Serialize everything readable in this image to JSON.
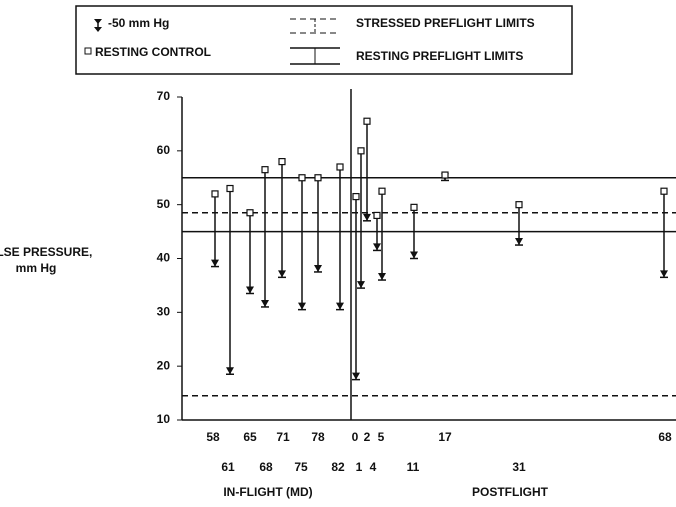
{
  "chart_data": {
    "type": "range",
    "y_label": [
      "PULSE PRESSURE,",
      "mm Hg"
    ],
    "x_groups": [
      "IN-FLIGHT (MD)",
      "POSTFLIGHT"
    ],
    "categories": [
      "58",
      "61",
      "65",
      "68",
      "71",
      "75",
      "78",
      "82",
      "0",
      "1",
      "2",
      "4",
      "5",
      "11",
      "17",
      "31",
      "68"
    ],
    "series": [
      {
        "name": "RESTING CONTROL",
        "color": "#111",
        "values": [
          52,
          53,
          48.5,
          56.5,
          58,
          55,
          55,
          57,
          51.5,
          60,
          65.5,
          48,
          52.5,
          49.5,
          55.5,
          50,
          52.5
        ]
      },
      {
        "name": "-50 mm Hg",
        "color": "#111",
        "values": [
          38.5,
          18.5,
          33.5,
          31,
          36.5,
          30.5,
          37.5,
          30.5,
          17.5,
          34.5,
          47,
          41.5,
          36,
          40,
          54.5,
          42.5,
          36.5
        ]
      }
    ],
    "reference_lines": [
      {
        "name": "STRESSED PREFLIGHT LIMITS",
        "style": "dashed",
        "values": [
          14.5,
          48.5
        ]
      },
      {
        "name": "RESTING PREFLIGHT LIMITS",
        "style": "solid",
        "values": [
          45,
          55
        ]
      }
    ],
    "ylim": [
      10,
      70
    ],
    "yticks": [
      10,
      20,
      30,
      40,
      50,
      60,
      70
    ]
  }
}
